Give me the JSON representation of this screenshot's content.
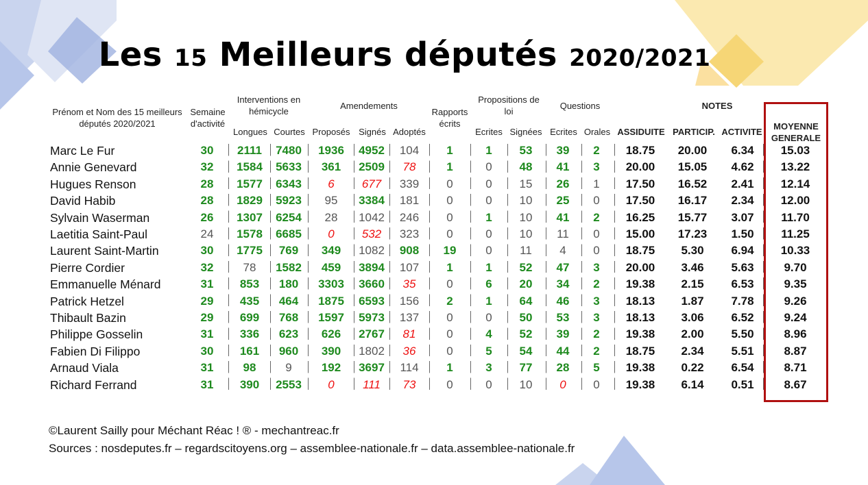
{
  "title": {
    "part1": "Les ",
    "num": "15",
    "part2": " Meilleurs députés ",
    "year": "2020/2021"
  },
  "headers": {
    "name_line1": "Prénom et Nom des 15 meilleurs",
    "name_line2": "députés 2020/2021",
    "semaine_line1": "Semaine",
    "semaine_line2": "d'activité",
    "interventions_line1": "Interventions en",
    "interventions_line2": "hémicycle",
    "longues": "Longues",
    "courtes": "Courtes",
    "amendements": "Amendements",
    "proposes": "Proposés",
    "signes": "Signés",
    "adoptes": "Adoptés",
    "rapports_line1": "Rapports",
    "rapports_line2": "écrits",
    "propositions_line1": "Propositions de",
    "propositions_line2": "loi",
    "ecrites": "Ecrites",
    "signees": "Signées",
    "questions": "Questions",
    "q_ecrites": "Ecrites",
    "q_orales": "Orales",
    "notes": "NOTES",
    "assiduite": "ASSIDUITE",
    "particip": "PARTICIP.",
    "activite": "ACTIVITE",
    "moyenne_line1": "MOYENNE",
    "moyenne_line2": "GENERALE"
  },
  "rows": [
    {
      "name": "Marc Le Fur",
      "cells": [
        [
          "30",
          "g"
        ],
        [
          "2111",
          "g"
        ],
        [
          "7480",
          "g"
        ],
        [
          "1936",
          "g"
        ],
        [
          "4952",
          "g"
        ],
        [
          "104",
          "n"
        ],
        [
          "1",
          "g"
        ],
        [
          "1",
          "g"
        ],
        [
          "53",
          "g"
        ],
        [
          "39",
          "g"
        ],
        [
          "2",
          "g"
        ],
        [
          "18.75",
          "k"
        ],
        [
          "20.00",
          "k"
        ],
        [
          "6.34",
          "k"
        ],
        [
          "15.03",
          "k"
        ]
      ]
    },
    {
      "name": "Annie Genevard",
      "cells": [
        [
          "32",
          "g"
        ],
        [
          "1584",
          "g"
        ],
        [
          "5633",
          "g"
        ],
        [
          "361",
          "g"
        ],
        [
          "2509",
          "g"
        ],
        [
          "78",
          "r"
        ],
        [
          "1",
          "g"
        ],
        [
          "0",
          "n"
        ],
        [
          "48",
          "g"
        ],
        [
          "41",
          "g"
        ],
        [
          "3",
          "g"
        ],
        [
          "20.00",
          "k"
        ],
        [
          "15.05",
          "k"
        ],
        [
          "4.62",
          "k"
        ],
        [
          "13.22",
          "k"
        ]
      ]
    },
    {
      "name": "Hugues Renson",
      "cells": [
        [
          "28",
          "g"
        ],
        [
          "1577",
          "g"
        ],
        [
          "6343",
          "g"
        ],
        [
          "6",
          "r"
        ],
        [
          "677",
          "r"
        ],
        [
          "339",
          "n"
        ],
        [
          "0",
          "n"
        ],
        [
          "0",
          "n"
        ],
        [
          "15",
          "n"
        ],
        [
          "26",
          "g"
        ],
        [
          "1",
          "n"
        ],
        [
          "17.50",
          "k"
        ],
        [
          "16.52",
          "k"
        ],
        [
          "2.41",
          "k"
        ],
        [
          "12.14",
          "k"
        ]
      ]
    },
    {
      "name": "David Habib",
      "cells": [
        [
          "28",
          "g"
        ],
        [
          "1829",
          "g"
        ],
        [
          "5923",
          "g"
        ],
        [
          "95",
          "n"
        ],
        [
          "3384",
          "g"
        ],
        [
          "181",
          "n"
        ],
        [
          "0",
          "n"
        ],
        [
          "0",
          "n"
        ],
        [
          "10",
          "n"
        ],
        [
          "25",
          "g"
        ],
        [
          "0",
          "n"
        ],
        [
          "17.50",
          "k"
        ],
        [
          "16.17",
          "k"
        ],
        [
          "2.34",
          "k"
        ],
        [
          "12.00",
          "k"
        ]
      ]
    },
    {
      "name": "Sylvain Waserman",
      "cells": [
        [
          "26",
          "g"
        ],
        [
          "1307",
          "g"
        ],
        [
          "6254",
          "g"
        ],
        [
          "28",
          "n"
        ],
        [
          "1042",
          "n"
        ],
        [
          "246",
          "n"
        ],
        [
          "0",
          "n"
        ],
        [
          "1",
          "g"
        ],
        [
          "10",
          "n"
        ],
        [
          "41",
          "g"
        ],
        [
          "2",
          "g"
        ],
        [
          "16.25",
          "k"
        ],
        [
          "15.77",
          "k"
        ],
        [
          "3.07",
          "k"
        ],
        [
          "11.70",
          "k"
        ]
      ]
    },
    {
      "name": "Laetitia Saint-Paul",
      "cells": [
        [
          "24",
          "n"
        ],
        [
          "1578",
          "g"
        ],
        [
          "6685",
          "g"
        ],
        [
          "0",
          "r"
        ],
        [
          "532",
          "r"
        ],
        [
          "323",
          "n"
        ],
        [
          "0",
          "n"
        ],
        [
          "0",
          "n"
        ],
        [
          "10",
          "n"
        ],
        [
          "11",
          "n"
        ],
        [
          "0",
          "n"
        ],
        [
          "15.00",
          "k"
        ],
        [
          "17.23",
          "k"
        ],
        [
          "1.50",
          "k"
        ],
        [
          "11.25",
          "k"
        ]
      ]
    },
    {
      "name": "Laurent Saint-Martin",
      "cells": [
        [
          "30",
          "g"
        ],
        [
          "1775",
          "g"
        ],
        [
          "769",
          "g"
        ],
        [
          "349",
          "g"
        ],
        [
          "1082",
          "n"
        ],
        [
          "908",
          "g"
        ],
        [
          "19",
          "g"
        ],
        [
          "0",
          "n"
        ],
        [
          "11",
          "n"
        ],
        [
          "4",
          "n"
        ],
        [
          "0",
          "n"
        ],
        [
          "18.75",
          "k"
        ],
        [
          "5.30",
          "k"
        ],
        [
          "6.94",
          "k"
        ],
        [
          "10.33",
          "k"
        ]
      ]
    },
    {
      "name": "Pierre Cordier",
      "cells": [
        [
          "32",
          "g"
        ],
        [
          "78",
          "n"
        ],
        [
          "1582",
          "g"
        ],
        [
          "459",
          "g"
        ],
        [
          "3894",
          "g"
        ],
        [
          "107",
          "n"
        ],
        [
          "1",
          "g"
        ],
        [
          "1",
          "g"
        ],
        [
          "52",
          "g"
        ],
        [
          "47",
          "g"
        ],
        [
          "3",
          "g"
        ],
        [
          "20.00",
          "k"
        ],
        [
          "3.46",
          "k"
        ],
        [
          "5.63",
          "k"
        ],
        [
          "9.70",
          "k"
        ]
      ]
    },
    {
      "name": "Emmanuelle Ménard",
      "cells": [
        [
          "31",
          "g"
        ],
        [
          "853",
          "g"
        ],
        [
          "180",
          "g"
        ],
        [
          "3303",
          "g"
        ],
        [
          "3660",
          "g"
        ],
        [
          "35",
          "r"
        ],
        [
          "0",
          "n"
        ],
        [
          "6",
          "g"
        ],
        [
          "20",
          "g"
        ],
        [
          "34",
          "g"
        ],
        [
          "2",
          "g"
        ],
        [
          "19.38",
          "k"
        ],
        [
          "2.15",
          "k"
        ],
        [
          "6.53",
          "k"
        ],
        [
          "9.35",
          "k"
        ]
      ]
    },
    {
      "name": "Patrick Hetzel",
      "cells": [
        [
          "29",
          "g"
        ],
        [
          "435",
          "g"
        ],
        [
          "464",
          "g"
        ],
        [
          "1875",
          "g"
        ],
        [
          "6593",
          "g"
        ],
        [
          "156",
          "n"
        ],
        [
          "2",
          "g"
        ],
        [
          "1",
          "g"
        ],
        [
          "64",
          "g"
        ],
        [
          "46",
          "g"
        ],
        [
          "3",
          "g"
        ],
        [
          "18.13",
          "k"
        ],
        [
          "1.87",
          "k"
        ],
        [
          "7.78",
          "k"
        ],
        [
          "9.26",
          "k"
        ]
      ]
    },
    {
      "name": "Thibault Bazin",
      "cells": [
        [
          "29",
          "g"
        ],
        [
          "699",
          "g"
        ],
        [
          "768",
          "g"
        ],
        [
          "1597",
          "g"
        ],
        [
          "5973",
          "g"
        ],
        [
          "137",
          "n"
        ],
        [
          "0",
          "n"
        ],
        [
          "0",
          "n"
        ],
        [
          "50",
          "g"
        ],
        [
          "53",
          "g"
        ],
        [
          "3",
          "g"
        ],
        [
          "18.13",
          "k"
        ],
        [
          "3.06",
          "k"
        ],
        [
          "6.52",
          "k"
        ],
        [
          "9.24",
          "k"
        ]
      ]
    },
    {
      "name": "Philippe Gosselin",
      "cells": [
        [
          "31",
          "g"
        ],
        [
          "336",
          "g"
        ],
        [
          "623",
          "g"
        ],
        [
          "626",
          "g"
        ],
        [
          "2767",
          "g"
        ],
        [
          "81",
          "r"
        ],
        [
          "0",
          "n"
        ],
        [
          "4",
          "g"
        ],
        [
          "52",
          "g"
        ],
        [
          "39",
          "g"
        ],
        [
          "2",
          "g"
        ],
        [
          "19.38",
          "k"
        ],
        [
          "2.00",
          "k"
        ],
        [
          "5.50",
          "k"
        ],
        [
          "8.96",
          "k"
        ]
      ]
    },
    {
      "name": "Fabien Di Filippo",
      "cells": [
        [
          "30",
          "g"
        ],
        [
          "161",
          "g"
        ],
        [
          "960",
          "g"
        ],
        [
          "390",
          "g"
        ],
        [
          "1802",
          "n"
        ],
        [
          "36",
          "r"
        ],
        [
          "0",
          "n"
        ],
        [
          "5",
          "g"
        ],
        [
          "54",
          "g"
        ],
        [
          "44",
          "g"
        ],
        [
          "2",
          "g"
        ],
        [
          "18.75",
          "k"
        ],
        [
          "2.34",
          "k"
        ],
        [
          "5.51",
          "k"
        ],
        [
          "8.87",
          "k"
        ]
      ]
    },
    {
      "name": "Arnaud Viala",
      "cells": [
        [
          "31",
          "g"
        ],
        [
          "98",
          "g"
        ],
        [
          "9",
          "n"
        ],
        [
          "192",
          "g"
        ],
        [
          "3697",
          "g"
        ],
        [
          "114",
          "n"
        ],
        [
          "1",
          "g"
        ],
        [
          "3",
          "g"
        ],
        [
          "77",
          "g"
        ],
        [
          "28",
          "g"
        ],
        [
          "5",
          "g"
        ],
        [
          "19.38",
          "k"
        ],
        [
          "0.22",
          "k"
        ],
        [
          "6.54",
          "k"
        ],
        [
          "8.71",
          "k"
        ]
      ]
    },
    {
      "name": "Richard Ferrand",
      "cells": [
        [
          "31",
          "g"
        ],
        [
          "390",
          "g"
        ],
        [
          "2553",
          "g"
        ],
        [
          "0",
          "r"
        ],
        [
          "111",
          "r"
        ],
        [
          "73",
          "r"
        ],
        [
          "0",
          "n"
        ],
        [
          "0",
          "n"
        ],
        [
          "10",
          "n"
        ],
        [
          "0",
          "r"
        ],
        [
          "0",
          "n"
        ],
        [
          "19.38",
          "k"
        ],
        [
          "6.14",
          "k"
        ],
        [
          "0.51",
          "k"
        ],
        [
          "8.67",
          "k"
        ]
      ]
    }
  ],
  "footer": {
    "copyright": "©Laurent Sailly pour Méchant Réac ! ® - mechantreac.fr",
    "sources": "Sources : nosdeputes.fr – regardscitoyens.org – assemblee-nationale.fr – data.assemblee-nationale.fr"
  },
  "colors": {
    "green": "#1e8a1e",
    "red": "#e11111",
    "box": "#b01010",
    "deco_blue": "#8fa6dc",
    "deco_yellow": "#f7d36a"
  }
}
